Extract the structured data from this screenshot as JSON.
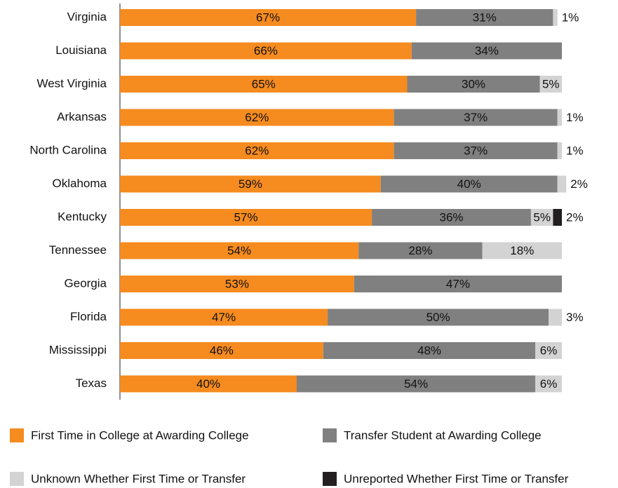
{
  "chart_data": {
    "type": "stacked-barh",
    "categories": [
      "Virginia",
      "Louisiana",
      "West Virginia",
      "Arkansas",
      "North Carolina",
      "Oklahoma",
      "Kentucky",
      "Tennessee",
      "Georgia",
      "Florida",
      "Mississippi",
      "Texas"
    ],
    "xlim": [
      0,
      100
    ],
    "series": [
      {
        "name": "First Time in College at Awarding College",
        "color": "#f68b1f",
        "values": [
          67,
          66,
          65,
          62,
          62,
          59,
          57,
          54,
          53,
          47,
          46,
          40
        ],
        "value_labels": [
          "67%",
          "66%",
          "65%",
          "62%",
          "62%",
          "59%",
          "57%",
          "54%",
          "53%",
          "47%",
          "46%",
          "40%"
        ]
      },
      {
        "name": "Transfer Student at Awarding College",
        "color": "#808080",
        "values": [
          31,
          34,
          30,
          37,
          37,
          40,
          36,
          28,
          47,
          50,
          48,
          54
        ],
        "value_labels": [
          "31%",
          "34%",
          "30%",
          "37%",
          "37%",
          "40%",
          "36%",
          "28%",
          "47%",
          "50%",
          "48%",
          "54%"
        ]
      },
      {
        "name": "Unknown Whether First Time or Transfer",
        "color": "#d3d3d3",
        "values": [
          1,
          null,
          5,
          1,
          1,
          2,
          5,
          18,
          null,
          3,
          6,
          6
        ],
        "value_labels": [
          "1%",
          null,
          "5%",
          "1%",
          "1%",
          "2%",
          "5%",
          "18%",
          null,
          "3%",
          "6%",
          "6%"
        ]
      },
      {
        "name": "Unreported Whether First Time or Transfer",
        "color": "#231f20",
        "values": [
          null,
          null,
          null,
          null,
          null,
          null,
          2,
          null,
          null,
          null,
          null,
          null
        ],
        "value_labels": [
          null,
          null,
          null,
          null,
          null,
          null,
          "2%",
          null,
          null,
          null,
          null,
          null
        ]
      }
    ]
  }
}
